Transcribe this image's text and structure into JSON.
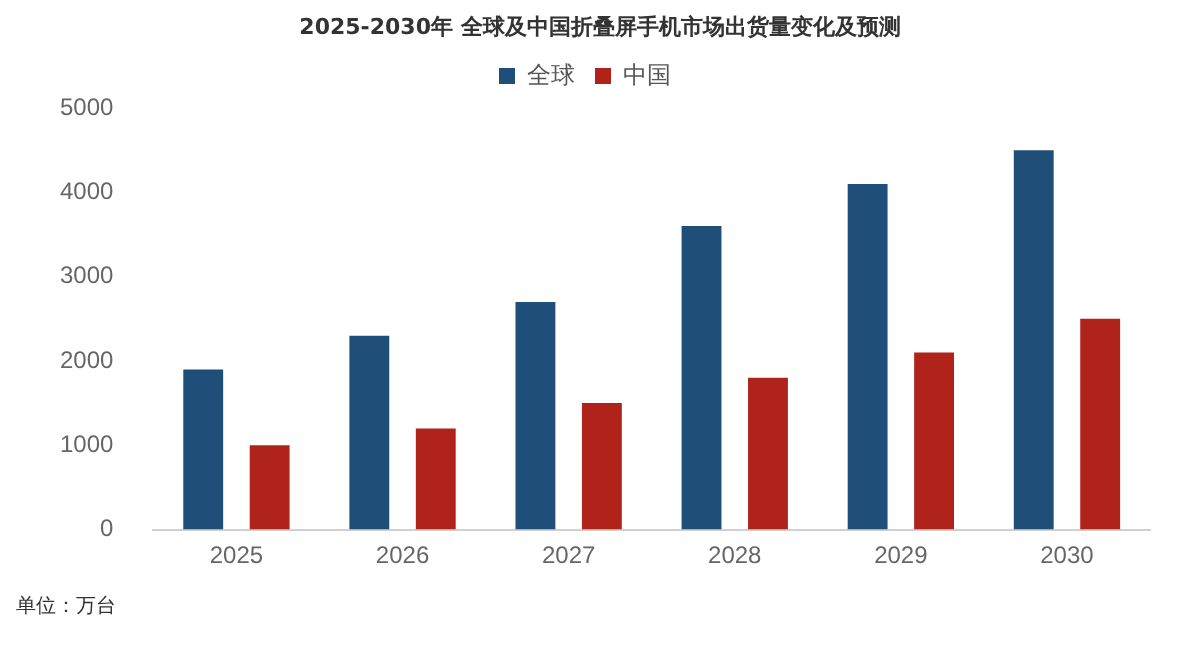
{
  "chart_data": {
    "type": "bar",
    "title": "2025-2030年 全球及中国折叠屏手机市场出货量变化及预测",
    "categories": [
      "2025",
      "2026",
      "2027",
      "2028",
      "2029",
      "2030"
    ],
    "series": [
      {
        "name": "全球",
        "color": "#1f4e79",
        "values": [
          1900,
          2300,
          2700,
          3600,
          4100,
          4500
        ]
      },
      {
        "name": "中国",
        "color": "#b0231b",
        "values": [
          1000,
          1200,
          1500,
          1800,
          2100,
          2500
        ]
      }
    ],
    "ylim": [
      0,
      5000
    ],
    "yticks": [
      0,
      1000,
      2000,
      3000,
      4000,
      5000
    ],
    "grid": false,
    "legend": "top",
    "annotations": [
      "单位：万台"
    ]
  }
}
